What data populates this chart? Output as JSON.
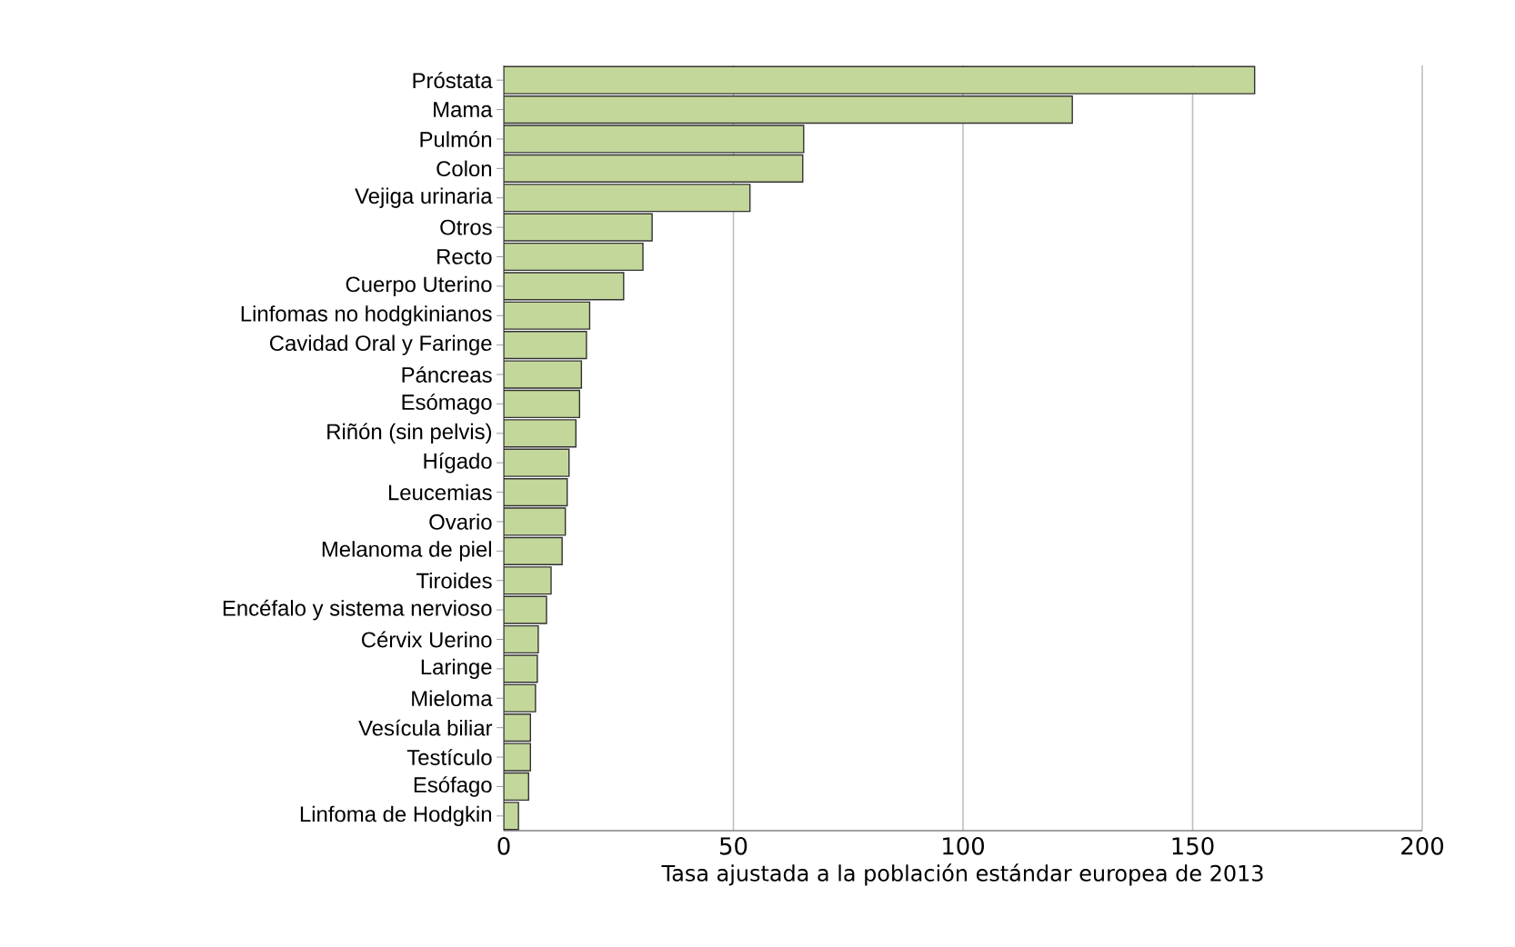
{
  "chart_data": {
    "type": "bar",
    "orientation": "horizontal",
    "xlabel": "Tasa ajustada a la población estándar europea de 2013",
    "categories": [
      "Próstata",
      "Mama",
      "Pulmón",
      "Colon",
      "Vejiga urinaria",
      "Otros",
      "Recto",
      "Cuerpo Uterino",
      "Linfomas no hodgkinianos",
      "Cavidad Oral y Faringe",
      "Páncreas",
      "Esómago",
      "Riñón (sin pelvis)",
      "Hígado",
      "Leucemias",
      "Ovario",
      "Melanoma de piel",
      "Tiroides",
      "Encéfalo y sistema nervioso",
      "Cérvix Uerino",
      "Laringe",
      "Mieloma",
      "Vesícula biliar",
      "Testículo",
      "Esófago",
      "Linfoma de Hodgkin"
    ],
    "values": [
      163.5,
      123.8,
      65.3,
      65.1,
      53.6,
      32.3,
      30.3,
      26.1,
      18.7,
      18.0,
      16.9,
      16.5,
      15.7,
      14.2,
      13.8,
      13.4,
      12.7,
      10.3,
      9.3,
      7.5,
      7.3,
      6.9,
      5.8,
      5.8,
      5.4,
      3.2
    ],
    "color": "#c4d79b",
    "xlim": [
      0,
      200
    ],
    "xticks": [
      0,
      50,
      100,
      150,
      200
    ],
    "grid": "x"
  }
}
